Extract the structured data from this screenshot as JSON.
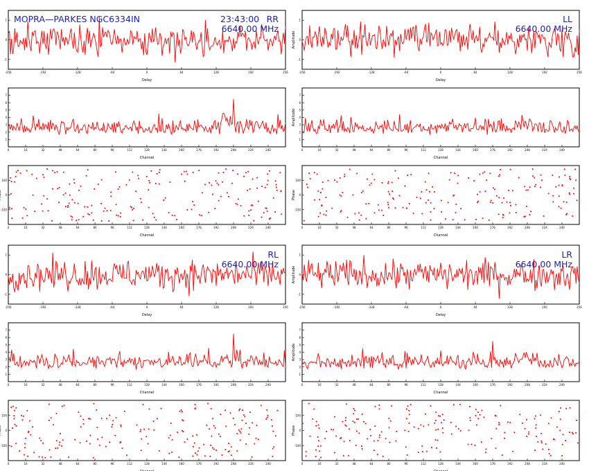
{
  "source_label": "MOPRA—PARKES  NGC6334IN",
  "time_label": "23:43:00",
  "frequency_label": "6640.00  MHz",
  "colors": {
    "trace": "#ff0000",
    "header": "#1a1acc",
    "axis": "#000000"
  },
  "chart_data": [
    {
      "id": "rr-delay",
      "type": "line",
      "polarization": "RR",
      "xlabel": "Delay",
      "ylabel": "",
      "xlim": [
        -256,
        256
      ],
      "ylim": [
        -1.5,
        1.5
      ],
      "xticks": [
        -256,
        -192,
        -128,
        -64,
        0,
        64,
        128,
        192,
        256
      ],
      "xtick_labels": [
        "-256",
        "-192",
        "-128",
        "-64",
        "0",
        "64",
        "128",
        "192",
        "256"
      ],
      "yticks": [
        -1,
        0,
        1
      ],
      "ytick_labels": [
        "-1",
        "0",
        "1"
      ],
      "series": [
        {
          "profile": "noise",
          "values": []
        }
      ]
    },
    {
      "id": "ll-delay",
      "type": "line",
      "polarization": "LL",
      "xlabel": "Delay",
      "ylabel": "Amplitude",
      "xlim": [
        -256,
        256
      ],
      "ylim": [
        -1.5,
        1.5
      ],
      "xticks": [
        -256,
        -192,
        -128,
        -64,
        0,
        64,
        128,
        192,
        256
      ],
      "xtick_labels": [
        "-256",
        "-192",
        "-128",
        "-64",
        "0",
        "64",
        "128",
        "192",
        "256"
      ],
      "yticks": [
        -1,
        0,
        1
      ],
      "ytick_labels": [
        "-1",
        "0",
        "1"
      ],
      "series": [
        {
          "profile": "noise",
          "values": []
        }
      ]
    },
    {
      "id": "rr-channel",
      "type": "line",
      "xlabel": "Channel",
      "ylabel": "",
      "xlim": [
        0,
        256
      ],
      "ylim": [
        0,
        8
      ],
      "xticks": [
        0,
        16,
        32,
        48,
        64,
        80,
        96,
        112,
        128,
        144,
        160,
        176,
        192,
        208,
        224,
        240
      ],
      "xtick_labels": [
        "0",
        "16",
        "32",
        "48",
        "64",
        "80",
        "96",
        "112",
        "128",
        "144",
        "160",
        "176",
        "192",
        "208",
        "224",
        "240"
      ],
      "yticks": [
        1,
        2,
        3,
        4,
        5,
        6,
        7
      ],
      "ytick_labels": [
        "1",
        "2",
        "3",
        "4",
        "5",
        "6",
        "7"
      ],
      "series": [
        {
          "profile": "spectrum",
          "values": []
        }
      ]
    },
    {
      "id": "ll-channel",
      "type": "line",
      "xlabel": "Channel",
      "ylabel": "Amplitude",
      "xlim": [
        0,
        256
      ],
      "ylim": [
        0,
        8
      ],
      "xticks": [
        0,
        16,
        32,
        48,
        64,
        80,
        96,
        112,
        128,
        144,
        160,
        176,
        192,
        208,
        224,
        240
      ],
      "xtick_labels": [
        "0",
        "16",
        "32",
        "48",
        "64",
        "80",
        "96",
        "112",
        "128",
        "144",
        "160",
        "176",
        "192",
        "208",
        "224",
        "240"
      ],
      "yticks": [
        1,
        2,
        3,
        4,
        5,
        6,
        7
      ],
      "ytick_labels": [
        "1",
        "2",
        "3",
        "4",
        "5",
        "6",
        "7"
      ],
      "series": [
        {
          "profile": "spectrum",
          "values": []
        }
      ]
    },
    {
      "id": "rr-phase",
      "type": "scatter",
      "xlabel": "Channel",
      "ylabel": "Phase",
      "xlim": [
        0,
        256
      ],
      "ylim": [
        -200,
        200
      ],
      "xticks": [
        0,
        16,
        32,
        48,
        64,
        80,
        96,
        112,
        128,
        144,
        160,
        176,
        192,
        208,
        224,
        240
      ],
      "xtick_labels": [
        "0",
        "16",
        "32",
        "48",
        "64",
        "80",
        "96",
        "112",
        "128",
        "144",
        "160",
        "176",
        "192",
        "208",
        "224",
        "240"
      ],
      "yticks": [
        -100,
        0,
        100
      ],
      "ytick_labels": [
        "-100",
        "0",
        "100"
      ],
      "series": [
        {
          "profile": "phase",
          "x": [],
          "y": []
        }
      ]
    },
    {
      "id": "ll-phase",
      "type": "scatter",
      "xlabel": "Channel",
      "ylabel": "Phase",
      "xlim": [
        0,
        256
      ],
      "ylim": [
        -200,
        200
      ],
      "xticks": [
        0,
        16,
        32,
        48,
        64,
        80,
        96,
        112,
        128,
        144,
        160,
        176,
        192,
        208,
        224,
        240
      ],
      "xtick_labels": [
        "0",
        "16",
        "32",
        "48",
        "64",
        "80",
        "96",
        "112",
        "128",
        "144",
        "160",
        "176",
        "192",
        "208",
        "224",
        "240"
      ],
      "yticks": [
        -100,
        0,
        100
      ],
      "ytick_labels": [
        "-100",
        "0",
        "100"
      ],
      "series": [
        {
          "profile": "phase",
          "x": [],
          "y": []
        }
      ]
    },
    {
      "id": "rl-delay",
      "type": "line",
      "polarization": "RL",
      "xlabel": "Delay",
      "ylabel": "",
      "xlim": [
        -256,
        256
      ],
      "ylim": [
        -1.5,
        1.5
      ],
      "xticks": [
        -256,
        -192,
        -128,
        -64,
        0,
        64,
        128,
        192,
        256
      ],
      "xtick_labels": [
        "-256",
        "-192",
        "-128",
        "-64",
        "0",
        "64",
        "128",
        "192",
        "256"
      ],
      "yticks": [
        -1,
        0,
        1
      ],
      "ytick_labels": [
        "-1",
        "0",
        "1"
      ],
      "series": [
        {
          "profile": "noise",
          "values": []
        }
      ]
    },
    {
      "id": "lr-delay",
      "type": "line",
      "polarization": "LR",
      "xlabel": "Delay",
      "ylabel": "Amplitude",
      "xlim": [
        -256,
        256
      ],
      "ylim": [
        -1.5,
        1.5
      ],
      "xticks": [
        -256,
        -192,
        -128,
        -64,
        0,
        64,
        128,
        192,
        256
      ],
      "xtick_labels": [
        "-256",
        "-192",
        "-128",
        "-64",
        "0",
        "64",
        "128",
        "192",
        "256"
      ],
      "yticks": [
        -1,
        0,
        1
      ],
      "ytick_labels": [
        "-1",
        "0",
        "1"
      ],
      "series": [
        {
          "profile": "noise",
          "values": []
        }
      ]
    },
    {
      "id": "rl-channel",
      "type": "line",
      "xlabel": "Channel",
      "ylabel": "",
      "xlim": [
        0,
        256
      ],
      "ylim": [
        0,
        8
      ],
      "xticks": [
        0,
        16,
        32,
        48,
        64,
        80,
        96,
        112,
        128,
        144,
        160,
        176,
        192,
        208,
        224,
        240
      ],
      "xtick_labels": [
        "0",
        "16",
        "32",
        "48",
        "64",
        "80",
        "96",
        "112",
        "128",
        "144",
        "160",
        "176",
        "192",
        "208",
        "224",
        "240"
      ],
      "yticks": [
        1,
        2,
        3,
        4,
        5,
        6,
        7
      ],
      "ytick_labels": [
        "1",
        "2",
        "3",
        "4",
        "5",
        "6",
        "7"
      ],
      "series": [
        {
          "profile": "spectrum",
          "values": []
        }
      ]
    },
    {
      "id": "lr-channel",
      "type": "line",
      "xlabel": "Channel",
      "ylabel": "Amplitude",
      "xlim": [
        0,
        256
      ],
      "ylim": [
        0,
        8
      ],
      "xticks": [
        0,
        16,
        32,
        48,
        64,
        80,
        96,
        112,
        128,
        144,
        160,
        176,
        192,
        208,
        224,
        240
      ],
      "xtick_labels": [
        "0",
        "16",
        "32",
        "48",
        "64",
        "80",
        "96",
        "112",
        "128",
        "144",
        "160",
        "176",
        "192",
        "208",
        "224",
        "240"
      ],
      "yticks": [
        1,
        2,
        3,
        4,
        5,
        6,
        7
      ],
      "ytick_labels": [
        "1",
        "2",
        "3",
        "4",
        "5",
        "6",
        "7"
      ],
      "series": [
        {
          "profile": "spectrum",
          "values": []
        }
      ]
    },
    {
      "id": "rl-phase",
      "type": "scatter",
      "xlabel": "Channel",
      "ylabel": "Phase",
      "xlim": [
        0,
        256
      ],
      "ylim": [
        -200,
        200
      ],
      "xticks": [
        0,
        16,
        32,
        48,
        64,
        80,
        96,
        112,
        128,
        144,
        160,
        176,
        192,
        208,
        224,
        240
      ],
      "xtick_labels": [
        "0",
        "16",
        "32",
        "48",
        "64",
        "80",
        "96",
        "112",
        "128",
        "144",
        "160",
        "176",
        "192",
        "208",
        "224",
        "240"
      ],
      "yticks": [
        -100,
        0,
        100
      ],
      "ytick_labels": [
        "-100",
        "0",
        "100"
      ],
      "series": [
        {
          "profile": "phase",
          "x": [],
          "y": []
        }
      ]
    },
    {
      "id": "lr-phase",
      "type": "scatter",
      "xlabel": "Channel",
      "ylabel": "Phase",
      "xlim": [
        0,
        256
      ],
      "ylim": [
        -200,
        200
      ],
      "xticks": [
        0,
        16,
        32,
        48,
        64,
        80,
        96,
        112,
        128,
        144,
        160,
        176,
        192,
        208,
        224,
        240
      ],
      "xtick_labels": [
        "0",
        "16",
        "32",
        "48",
        "64",
        "80",
        "96",
        "112",
        "128",
        "144",
        "160",
        "176",
        "192",
        "208",
        "224",
        "240"
      ],
      "yticks": [
        -100,
        0,
        100
      ],
      "ytick_labels": [
        "-100",
        "0",
        "100"
      ],
      "series": [
        {
          "profile": "phase",
          "x": [],
          "y": []
        }
      ]
    }
  ]
}
